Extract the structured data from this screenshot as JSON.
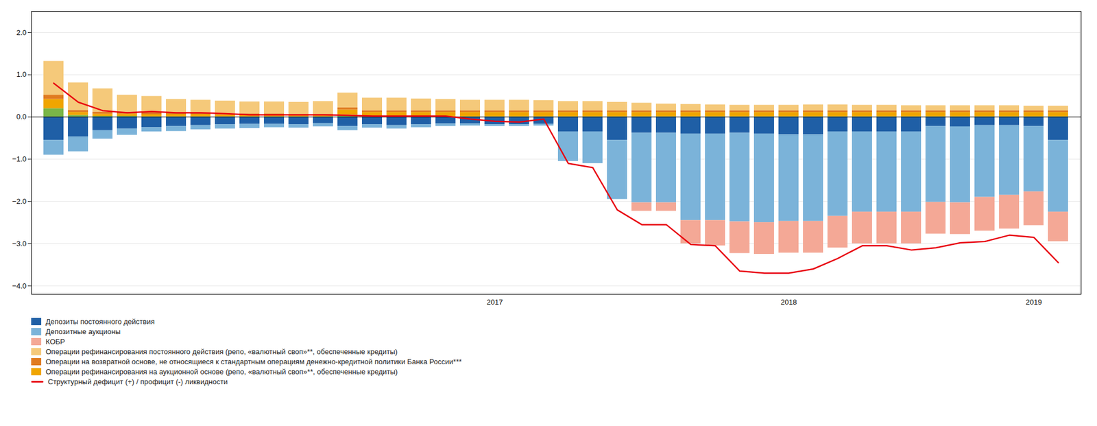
{
  "chart_data": {
    "type": "bar",
    "stacked": true,
    "grid": true,
    "legend": "bottom",
    "categories": [
      null,
      null,
      null,
      null,
      null,
      null,
      null,
      null,
      null,
      null,
      null,
      null,
      null,
      null,
      null,
      null,
      null,
      null,
      "2017",
      null,
      null,
      null,
      null,
      null,
      null,
      null,
      null,
      null,
      null,
      null,
      "2018",
      null,
      null,
      null,
      null,
      null,
      null,
      null,
      null,
      null,
      "2019",
      null
    ],
    "ylim": [
      -4.2,
      2.5
    ],
    "yticks": [
      -4,
      -3,
      -2,
      -1,
      0,
      1,
      2
    ],
    "series": [
      {
        "name": "Депозиты постоянного действия",
        "type": "bar",
        "color": "#1F5FA6",
        "values": [
          -0.55,
          -0.47,
          -0.32,
          -0.28,
          -0.25,
          -0.22,
          -0.2,
          -0.18,
          -0.17,
          -0.17,
          -0.18,
          -0.15,
          -0.22,
          -0.18,
          -0.2,
          -0.18,
          -0.16,
          -0.16,
          -0.18,
          -0.18,
          -0.17,
          -0.35,
          -0.35,
          -0.55,
          -0.38,
          -0.38,
          -0.4,
          -0.4,
          -0.38,
          -0.4,
          -0.42,
          -0.42,
          -0.35,
          -0.35,
          -0.35,
          -0.35,
          -0.22,
          -0.23,
          -0.2,
          -0.2,
          -0.22,
          -0.55
        ]
      },
      {
        "name": "Депозитные аукционы",
        "type": "bar",
        "color": "#7BB3D9",
        "values": [
          -0.35,
          -0.35,
          -0.2,
          -0.15,
          -0.1,
          -0.12,
          -0.1,
          -0.1,
          -0.1,
          -0.08,
          -0.08,
          -0.08,
          -0.1,
          -0.08,
          -0.08,
          -0.07,
          -0.06,
          -0.05,
          -0.04,
          -0.04,
          -0.04,
          -0.7,
          -0.75,
          -1.4,
          -1.65,
          -1.65,
          -2.05,
          -2.05,
          -2.1,
          -2.1,
          -2.05,
          -2.05,
          -2.0,
          -1.9,
          -1.9,
          -1.9,
          -1.8,
          -1.8,
          -1.7,
          -1.65,
          -1.55,
          -1.7
        ]
      },
      {
        "name": "КОБР",
        "type": "bar",
        "color": "#F4A896",
        "values": [
          0.0,
          0.0,
          0.0,
          0.0,
          0.0,
          0.0,
          0.0,
          0.0,
          0.0,
          0.0,
          0.0,
          0.0,
          0.0,
          0.0,
          0.0,
          0.0,
          0.0,
          0.0,
          0.0,
          0.0,
          0.0,
          0.0,
          0.0,
          0.0,
          -0.2,
          -0.2,
          -0.55,
          -0.6,
          -0.75,
          -0.75,
          -0.75,
          -0.75,
          -0.75,
          -0.75,
          -0.75,
          -0.75,
          -0.75,
          -0.75,
          -0.8,
          -0.8,
          -0.8,
          -0.7
        ]
      },
      {
        "name": "Операции рефинансирования постоянного действия (репо, «валютный своп»**, обеспеченные кредиты)",
        "type": "bar",
        "color": "#F5C97A",
        "values": [
          0.8,
          0.65,
          0.55,
          0.4,
          0.38,
          0.32,
          0.3,
          0.3,
          0.28,
          0.28,
          0.28,
          0.3,
          0.35,
          0.3,
          0.3,
          0.28,
          0.27,
          0.25,
          0.25,
          0.25,
          0.24,
          0.22,
          0.22,
          0.2,
          0.18,
          0.16,
          0.15,
          0.14,
          0.13,
          0.13,
          0.13,
          0.14,
          0.14,
          0.13,
          0.13,
          0.12,
          0.12,
          0.12,
          0.12,
          0.12,
          0.11,
          0.11
        ]
      },
      {
        "name": "Операции на возвратной основе, не относящиеся к стандартным операциям денежно-кредитной политики Банка России***",
        "type": "bar",
        "color": "#E07B20",
        "values": [
          0.1,
          0.05,
          0.05,
          0.05,
          0.05,
          0.04,
          0.04,
          0.03,
          0.03,
          0.03,
          0.03,
          0.03,
          0.05,
          0.04,
          0.04,
          0.04,
          0.04,
          0.04,
          0.04,
          0.04,
          0.04,
          0.04,
          0.04,
          0.04,
          0.04,
          0.04,
          0.04,
          0.04,
          0.04,
          0.04,
          0.04,
          0.04,
          0.04,
          0.04,
          0.04,
          0.04,
          0.04,
          0.04,
          0.04,
          0.04,
          0.04,
          0.04
        ]
      },
      {
        "name": "Операции рефинансирования на аукционной основе (репо, «валютный своп»**, обеспеченные кредиты)",
        "type": "bar",
        "color": "#F0A500",
        "values": [
          0.22,
          0.07,
          0.05,
          0.05,
          0.05,
          0.05,
          0.05,
          0.04,
          0.04,
          0.04,
          0.03,
          0.03,
          0.12,
          0.1,
          0.1,
          0.1,
          0.1,
          0.1,
          0.1,
          0.1,
          0.1,
          0.1,
          0.1,
          0.1,
          0.1,
          0.1,
          0.1,
          0.1,
          0.1,
          0.1,
          0.1,
          0.1,
          0.1,
          0.1,
          0.1,
          0.1,
          0.1,
          0.1,
          0.1,
          0.1,
          0.1,
          0.1
        ]
      },
      {
        "name": null,
        "type": "bar",
        "color": "#7AB648",
        "values": [
          0.2,
          0.04,
          0.02,
          0.02,
          0.01,
          0.01,
          0.01,
          0.01,
          0.01,
          0.01,
          0.01,
          0.01,
          0.05,
          0.01,
          0.01,
          0.01,
          0.01,
          0.01,
          0.01,
          0.01,
          0.01,
          0.01,
          0.01,
          0.01,
          0.01,
          0.01,
          0.01,
          0.01,
          0.01,
          0.01,
          0.01,
          0.01,
          0.01,
          0.01,
          0.01,
          0.01,
          0.01,
          0.01,
          0.01,
          0.01,
          0.01,
          0.01
        ]
      },
      {
        "name": "Структурный дефицит (+) / профицит (-) ликвидности",
        "type": "line",
        "color": "#E8000E",
        "values": [
          0.8,
          0.35,
          0.15,
          0.1,
          0.13,
          0.1,
          0.1,
          0.08,
          0.05,
          0.05,
          0.05,
          0.05,
          0.04,
          0.02,
          0.02,
          0.02,
          0.02,
          -0.05,
          -0.1,
          -0.12,
          -0.05,
          -1.1,
          -1.2,
          -2.2,
          -2.55,
          -2.55,
          -3.02,
          -3.05,
          -3.65,
          -3.7,
          -3.7,
          -3.6,
          -3.35,
          -3.05,
          -3.05,
          -3.15,
          -3.1,
          -2.98,
          -2.95,
          -2.8,
          -2.85,
          -3.45
        ]
      }
    ]
  }
}
